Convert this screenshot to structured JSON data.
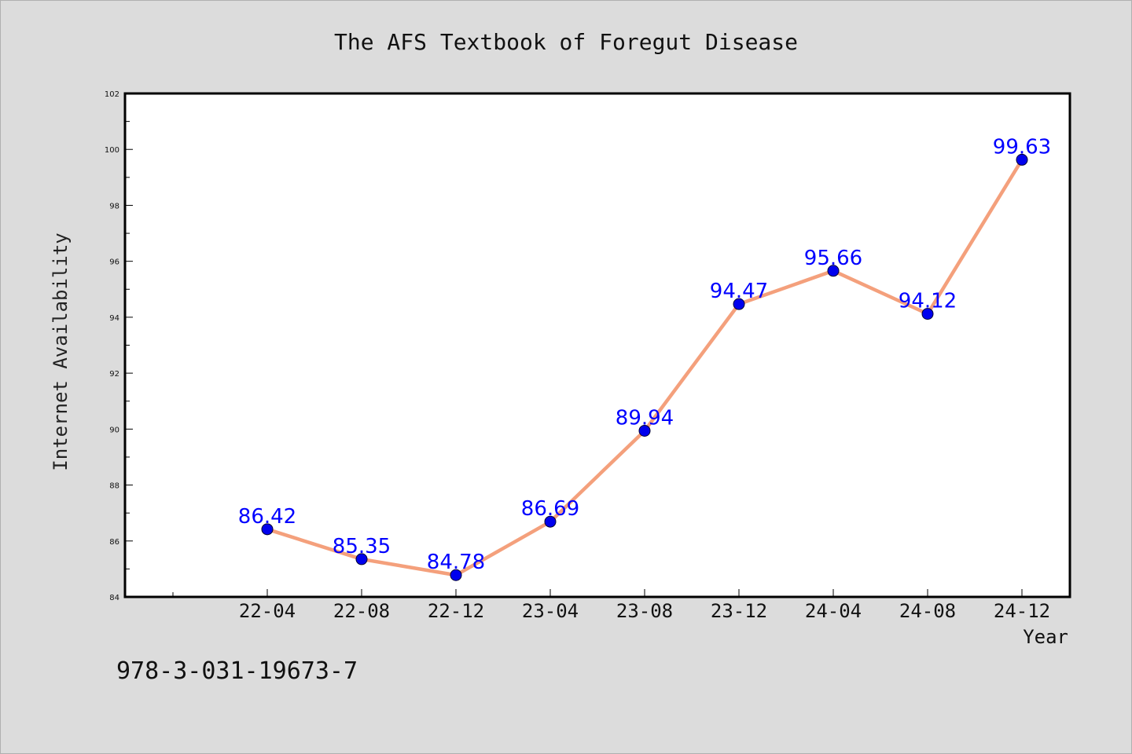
{
  "figure": {
    "title": "The AFS Textbook of Foregut Disease",
    "footer_text": "978-3-031-19673-7"
  },
  "colors": {
    "background": "#dcdcdc",
    "plot_background": "#ffffff",
    "line": "#f4a07c",
    "marker": "#0000ee",
    "data_label": "#0000ff"
  },
  "chart_data": {
    "type": "line",
    "title": "The AFS Textbook of Foregut Disease",
    "xlabel": "Year",
    "ylabel": "Internet Availability",
    "categories": [
      "22-04",
      "22-08",
      "22-12",
      "23-04",
      "23-08",
      "23-12",
      "24-04",
      "24-08",
      "24-12"
    ],
    "series": [
      {
        "values": [
          86.42,
          85.35,
          84.78,
          86.69,
          89.94,
          94.47,
          95.66,
          94.12,
          99.63
        ]
      }
    ],
    "data_labels": [
      "86.42",
      "85.35",
      "84.78",
      "86.69",
      "89.94",
      "94.47",
      "95.66",
      "94.12",
      "99.63"
    ],
    "ylim": [
      84,
      102
    ],
    "yticks": [
      84,
      86,
      88,
      90,
      92,
      94,
      96,
      98,
      100,
      102
    ],
    "grid": false,
    "legend": "none"
  }
}
